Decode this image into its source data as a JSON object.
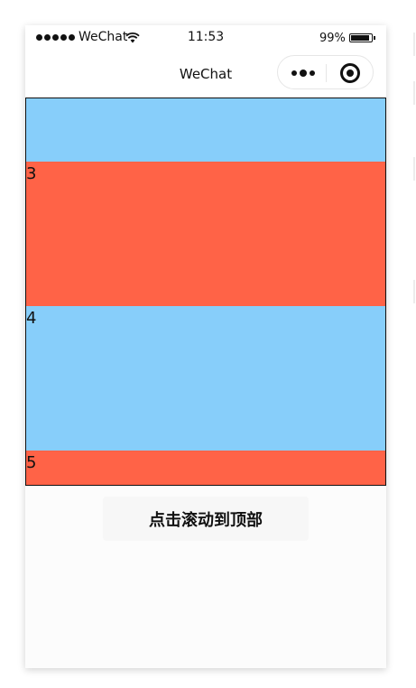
{
  "status_bar": {
    "carrier": "WeChat",
    "time": "11:53",
    "battery_percent": "99%",
    "battery_level": 0.99,
    "signal_icon": "signal-dots-icon",
    "wifi_icon": "wifi-icon",
    "battery_icon": "battery-icon"
  },
  "nav_bar": {
    "title": "WeChat",
    "more_icon": "more-dots-icon",
    "close_icon": "target-circle-icon"
  },
  "scroll_view": {
    "blocks": [
      {
        "label": "",
        "color": "#87cefa"
      },
      {
        "label": "3",
        "color": "#ff6347"
      },
      {
        "label": "4",
        "color": "#87cefa"
      },
      {
        "label": "5",
        "color": "#ff6347"
      }
    ]
  },
  "action": {
    "scroll_top_label": "点击滚动到顶部"
  }
}
